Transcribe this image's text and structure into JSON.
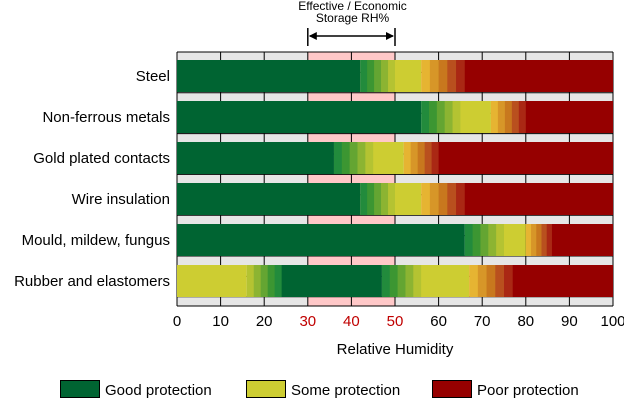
{
  "annotation": {
    "line1": "Effective / Economic",
    "line2": "Storage RH%"
  },
  "colors": {
    "grid_bg": "#e6e6e6",
    "grid_line": "#000000",
    "highlight_band": "#ffc8c8",
    "highlight_tick_text": "#c00000",
    "good": "#006432",
    "some": "#cdcd32",
    "poor": "#960000",
    "gradient_good_to_some": [
      "#228b3c",
      "#3c9632",
      "#64a532",
      "#8cb432",
      "#b4c332"
    ],
    "gradient_some_to_poor": [
      "#e6b432",
      "#d79628",
      "#c8781e",
      "#b9501e",
      "#aa2814"
    ]
  },
  "legend": [
    {
      "label": "Good protection",
      "color": "#006432"
    },
    {
      "label": "Some protection",
      "color": "#cdcd32"
    },
    {
      "label": "Poor protection",
      "color": "#960000"
    }
  ],
  "chart_data": {
    "type": "bar",
    "orientation": "horizontal",
    "xlabel": "Relative Humidity",
    "xlim": [
      0,
      100
    ],
    "x_ticks": [
      0,
      10,
      20,
      30,
      40,
      50,
      60,
      70,
      80,
      90,
      100
    ],
    "highlight_ticks": [
      30,
      40,
      50
    ],
    "highlight_range": [
      30,
      50
    ],
    "grid": true,
    "legend_position": "bottom",
    "categories": [
      "Steel",
      "Non-ferrous metals",
      "Gold plated contacts",
      "Wire insulation",
      "Mould, mildew, fungus",
      "Rubber and elastomers"
    ],
    "rows": [
      {
        "segments": [
          {
            "level": "good",
            "from": 0,
            "to": 42
          },
          {
            "level": "good-to-some",
            "from": 42,
            "to": 50
          },
          {
            "level": "some",
            "from": 50,
            "to": 56
          },
          {
            "level": "some-to-poor",
            "from": 56,
            "to": 66
          },
          {
            "level": "poor",
            "from": 66,
            "to": 100
          }
        ]
      },
      {
        "segments": [
          {
            "level": "good",
            "from": 0,
            "to": 56
          },
          {
            "level": "good-to-some",
            "from": 56,
            "to": 65
          },
          {
            "level": "some",
            "from": 65,
            "to": 72
          },
          {
            "level": "some-to-poor",
            "from": 72,
            "to": 80
          },
          {
            "level": "poor",
            "from": 80,
            "to": 100
          }
        ]
      },
      {
        "segments": [
          {
            "level": "good",
            "from": 0,
            "to": 36
          },
          {
            "level": "good-to-some",
            "from": 36,
            "to": 45
          },
          {
            "level": "some",
            "from": 45,
            "to": 52
          },
          {
            "level": "some-to-poor",
            "from": 52,
            "to": 60
          },
          {
            "level": "poor",
            "from": 60,
            "to": 100
          }
        ]
      },
      {
        "segments": [
          {
            "level": "good",
            "from": 0,
            "to": 42
          },
          {
            "level": "good-to-some",
            "from": 42,
            "to": 50
          },
          {
            "level": "some",
            "from": 50,
            "to": 56
          },
          {
            "level": "some-to-poor",
            "from": 56,
            "to": 66
          },
          {
            "level": "poor",
            "from": 66,
            "to": 100
          }
        ]
      },
      {
        "segments": [
          {
            "level": "good",
            "from": 0,
            "to": 66
          },
          {
            "level": "good-to-some",
            "from": 66,
            "to": 75
          },
          {
            "level": "some",
            "from": 75,
            "to": 80
          },
          {
            "level": "some-to-poor",
            "from": 80,
            "to": 86
          },
          {
            "level": "poor",
            "from": 86,
            "to": 100
          }
        ]
      },
      {
        "segments": [
          {
            "level": "some",
            "from": 0,
            "to": 16
          },
          {
            "level": "some-to-good",
            "from": 16,
            "to": 24
          },
          {
            "level": "good",
            "from": 24,
            "to": 47
          },
          {
            "level": "good-to-some",
            "from": 47,
            "to": 56
          },
          {
            "level": "some",
            "from": 56,
            "to": 67
          },
          {
            "level": "some-to-poor",
            "from": 67,
            "to": 77
          },
          {
            "level": "poor",
            "from": 77,
            "to": 100
          }
        ]
      }
    ]
  }
}
